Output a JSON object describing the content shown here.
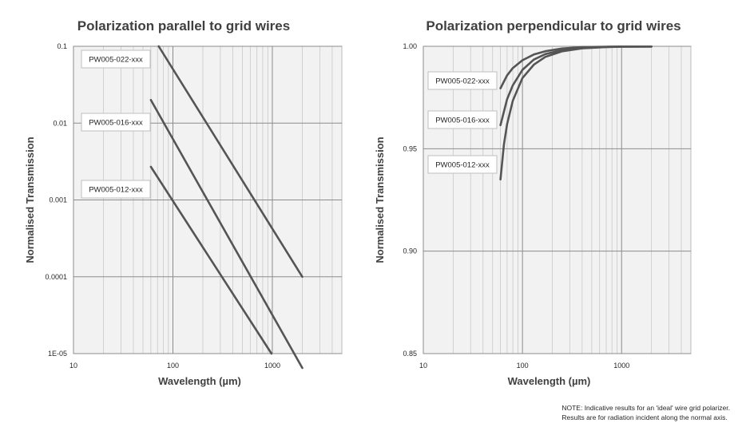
{
  "chart_data": [
    {
      "type": "line",
      "title": "Polarization parallel to grid wires",
      "xlabel": "Wavelength (µm)",
      "ylabel": "Normalised Transmission",
      "x_scale": "log",
      "y_scale": "log",
      "xlim": [
        10,
        5000
      ],
      "ylim": [
        1e-05,
        0.1
      ],
      "x_ticks": [
        10,
        100,
        1000
      ],
      "x_tick_labels": [
        "10",
        "100",
        "1000"
      ],
      "y_ticks": [
        0.1,
        0.01,
        0.001,
        0.0001,
        1e-05
      ],
      "y_tick_labels": [
        "0.1",
        "0.01",
        "0.001",
        "0.0001",
        "1E-05"
      ],
      "grid": true,
      "series": [
        {
          "name": "PW005-022-xxx",
          "x": [
            72,
            2000
          ],
          "y": [
            0.1,
            0.0001
          ]
        },
        {
          "name": "PW005-016-xxx",
          "x": [
            60,
            2000
          ],
          "y": [
            0.02,
            6.5e-06
          ]
        },
        {
          "name": "PW005-012-xxx",
          "x": [
            60,
            980
          ],
          "y": [
            0.0027,
            1e-05
          ]
        }
      ]
    },
    {
      "type": "line",
      "title": "Polarization perpendicular to grid wires",
      "xlabel": "Wavelength (µm)",
      "ylabel": "Normalised Transmission",
      "x_scale": "log",
      "y_scale": "linear",
      "xlim": [
        10,
        5000
      ],
      "ylim": [
        0.85,
        1.0
      ],
      "x_ticks": [
        10,
        100,
        1000
      ],
      "x_tick_labels": [
        "10",
        "100",
        "1000"
      ],
      "y_ticks": [
        1.0,
        0.95,
        0.9,
        0.85
      ],
      "y_tick_labels": [
        "1.00",
        "0.95",
        "0.90",
        "0.85"
      ],
      "grid": true,
      "series": [
        {
          "name": "PW005-022-xxx",
          "x": [
            60,
            70,
            80,
            100,
            130,
            170,
            250,
            400,
            700,
            1000,
            2000
          ],
          "y": [
            0.9795,
            0.9858,
            0.9894,
            0.9932,
            0.996,
            0.9976,
            0.9989,
            0.9996,
            0.9998,
            0.9999,
            0.9999
          ]
        },
        {
          "name": "PW005-016-xxx",
          "x": [
            60,
            70,
            80,
            100,
            130,
            170,
            250,
            400,
            700,
            1000,
            2000
          ],
          "y": [
            0.9615,
            0.9742,
            0.981,
            0.9885,
            0.9935,
            0.9962,
            0.9981,
            0.9992,
            0.9997,
            0.9998,
            0.9999
          ]
        },
        {
          "name": "PW005-012-xxx",
          "x": [
            60,
            65,
            70,
            80,
            100,
            130,
            170,
            250,
            400,
            700,
            1000,
            2000
          ],
          "y": [
            0.935,
            0.952,
            0.962,
            0.9735,
            0.9845,
            0.991,
            0.9948,
            0.9975,
            0.999,
            0.9996,
            0.9998,
            0.9999
          ]
        }
      ]
    }
  ],
  "note": {
    "line1": "NOTE: Indicative results for an 'ideal' wire grid polarizer.",
    "line2": "Results are for radiation incident along the normal axis."
  },
  "colors": {
    "plot_bg": "#f2f2f2",
    "grid": "#c8c8c8",
    "major_grid": "#8c8c8c",
    "series": "#555555"
  }
}
